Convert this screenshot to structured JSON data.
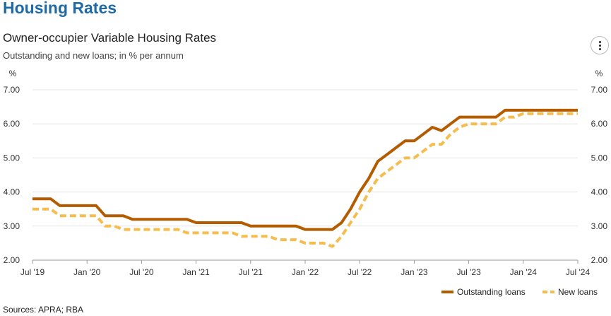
{
  "header": {
    "title": "Housing Rates"
  },
  "menu": {
    "icon": "more-vertical-icon"
  },
  "footer": {
    "source": "Sources: APRA; RBA"
  },
  "colors": {
    "outstanding": "#b35c00",
    "new": "#f6bc4d",
    "grid": "#e3e3e3",
    "title": "#1f6aa5"
  },
  "chart_data": {
    "type": "line",
    "title": "Owner-occupier Variable Housing Rates",
    "subtitle": "Outstanding and new loans; in % per annum",
    "ylabel_left": "%",
    "ylabel_right": "%",
    "ylim": [
      2.0,
      7.0
    ],
    "yticks": [
      "2.00",
      "3.00",
      "4.00",
      "5.00",
      "6.00",
      "7.00"
    ],
    "xticks": [
      "Jul '19",
      "Jan '20",
      "Jul '20",
      "Jan '21",
      "Jul '21",
      "Jan '22",
      "Jul '22",
      "Jan '23",
      "Jul '23",
      "Jan '24",
      "Jul '24"
    ],
    "grid": true,
    "legend_position": "bottom-right",
    "series": [
      {
        "name": "Outstanding loans",
        "style": "solid",
        "points": [
          [
            "2019-07",
            3.8
          ],
          [
            "2019-08",
            3.8
          ],
          [
            "2019-09",
            3.8
          ],
          [
            "2019-10",
            3.6
          ],
          [
            "2019-11",
            3.6
          ],
          [
            "2019-12",
            3.6
          ],
          [
            "2020-01",
            3.6
          ],
          [
            "2020-02",
            3.6
          ],
          [
            "2020-03",
            3.3
          ],
          [
            "2020-04",
            3.3
          ],
          [
            "2020-05",
            3.3
          ],
          [
            "2020-06",
            3.2
          ],
          [
            "2020-07",
            3.2
          ],
          [
            "2020-08",
            3.2
          ],
          [
            "2020-09",
            3.2
          ],
          [
            "2020-10",
            3.2
          ],
          [
            "2020-11",
            3.2
          ],
          [
            "2020-12",
            3.2
          ],
          [
            "2021-01",
            3.1
          ],
          [
            "2021-02",
            3.1
          ],
          [
            "2021-03",
            3.1
          ],
          [
            "2021-04",
            3.1
          ],
          [
            "2021-05",
            3.1
          ],
          [
            "2021-06",
            3.1
          ],
          [
            "2021-07",
            3.0
          ],
          [
            "2021-08",
            3.0
          ],
          [
            "2021-09",
            3.0
          ],
          [
            "2021-10",
            3.0
          ],
          [
            "2021-11",
            3.0
          ],
          [
            "2021-12",
            3.0
          ],
          [
            "2022-01",
            2.9
          ],
          [
            "2022-02",
            2.9
          ],
          [
            "2022-03",
            2.9
          ],
          [
            "2022-04",
            2.9
          ],
          [
            "2022-05",
            3.1
          ],
          [
            "2022-06",
            3.5
          ],
          [
            "2022-07",
            4.0
          ],
          [
            "2022-08",
            4.4
          ],
          [
            "2022-09",
            4.9
          ],
          [
            "2022-10",
            5.1
          ],
          [
            "2022-11",
            5.3
          ],
          [
            "2022-12",
            5.5
          ],
          [
            "2023-01",
            5.5
          ],
          [
            "2023-02",
            5.7
          ],
          [
            "2023-03",
            5.9
          ],
          [
            "2023-04",
            5.8
          ],
          [
            "2023-05",
            6.0
          ],
          [
            "2023-06",
            6.2
          ],
          [
            "2023-07",
            6.2
          ],
          [
            "2023-08",
            6.2
          ],
          [
            "2023-09",
            6.2
          ],
          [
            "2023-10",
            6.2
          ],
          [
            "2023-11",
            6.4
          ],
          [
            "2023-12",
            6.4
          ],
          [
            "2024-01",
            6.4
          ],
          [
            "2024-02",
            6.4
          ],
          [
            "2024-03",
            6.4
          ],
          [
            "2024-04",
            6.4
          ],
          [
            "2024-05",
            6.4
          ],
          [
            "2024-06",
            6.4
          ],
          [
            "2024-07",
            6.4
          ]
        ]
      },
      {
        "name": "New loans",
        "style": "dashed",
        "points": [
          [
            "2019-07",
            3.5
          ],
          [
            "2019-08",
            3.5
          ],
          [
            "2019-09",
            3.5
          ],
          [
            "2019-10",
            3.3
          ],
          [
            "2019-11",
            3.3
          ],
          [
            "2019-12",
            3.3
          ],
          [
            "2020-01",
            3.3
          ],
          [
            "2020-02",
            3.3
          ],
          [
            "2020-03",
            3.0
          ],
          [
            "2020-04",
            3.0
          ],
          [
            "2020-05",
            2.9
          ],
          [
            "2020-06",
            2.9
          ],
          [
            "2020-07",
            2.9
          ],
          [
            "2020-08",
            2.9
          ],
          [
            "2020-09",
            2.9
          ],
          [
            "2020-10",
            2.9
          ],
          [
            "2020-11",
            2.9
          ],
          [
            "2020-12",
            2.8
          ],
          [
            "2021-01",
            2.8
          ],
          [
            "2021-02",
            2.8
          ],
          [
            "2021-03",
            2.8
          ],
          [
            "2021-04",
            2.8
          ],
          [
            "2021-05",
            2.8
          ],
          [
            "2021-06",
            2.7
          ],
          [
            "2021-07",
            2.7
          ],
          [
            "2021-08",
            2.7
          ],
          [
            "2021-09",
            2.7
          ],
          [
            "2021-10",
            2.6
          ],
          [
            "2021-11",
            2.6
          ],
          [
            "2021-12",
            2.6
          ],
          [
            "2022-01",
            2.5
          ],
          [
            "2022-02",
            2.5
          ],
          [
            "2022-03",
            2.5
          ],
          [
            "2022-04",
            2.4
          ],
          [
            "2022-05",
            2.7
          ],
          [
            "2022-06",
            3.1
          ],
          [
            "2022-07",
            3.5
          ],
          [
            "2022-08",
            4.0
          ],
          [
            "2022-09",
            4.4
          ],
          [
            "2022-10",
            4.6
          ],
          [
            "2022-11",
            4.8
          ],
          [
            "2022-12",
            5.0
          ],
          [
            "2023-01",
            5.0
          ],
          [
            "2023-02",
            5.2
          ],
          [
            "2023-03",
            5.4
          ],
          [
            "2023-04",
            5.4
          ],
          [
            "2023-05",
            5.7
          ],
          [
            "2023-06",
            5.9
          ],
          [
            "2023-07",
            6.0
          ],
          [
            "2023-08",
            6.0
          ],
          [
            "2023-09",
            6.0
          ],
          [
            "2023-10",
            6.0
          ],
          [
            "2023-11",
            6.2
          ],
          [
            "2023-12",
            6.2
          ],
          [
            "2024-01",
            6.3
          ],
          [
            "2024-02",
            6.3
          ],
          [
            "2024-03",
            6.3
          ],
          [
            "2024-04",
            6.3
          ],
          [
            "2024-05",
            6.3
          ],
          [
            "2024-06",
            6.3
          ],
          [
            "2024-07",
            6.3
          ]
        ]
      }
    ]
  }
}
